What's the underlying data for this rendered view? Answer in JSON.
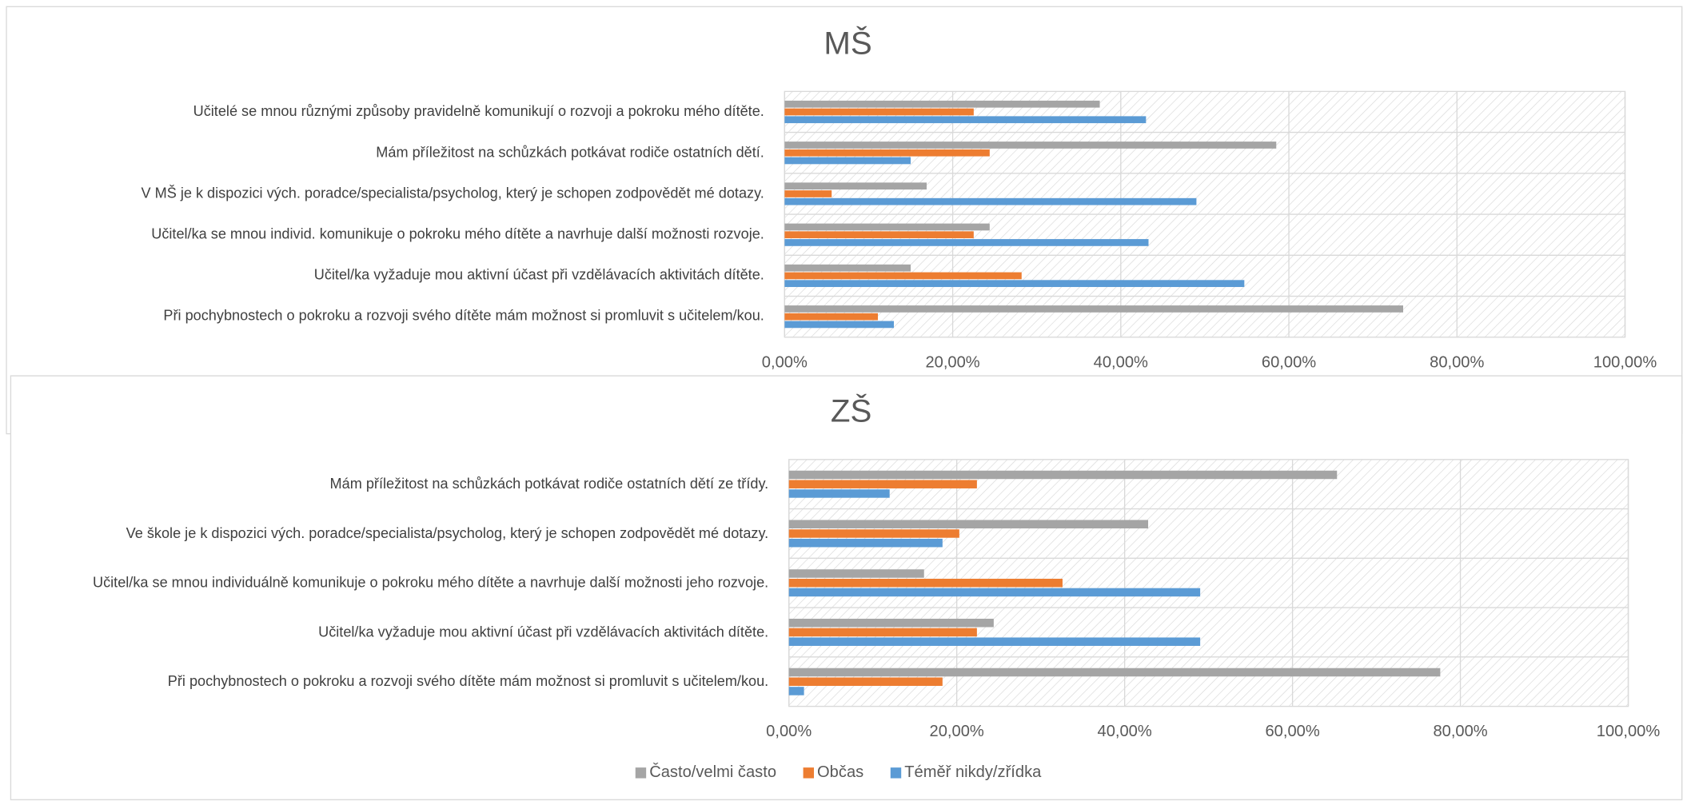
{
  "chart_data": [
    {
      "type": "bar",
      "orientation": "horizontal",
      "title": "MŠ",
      "categories": [
        "Učitelé se mnou různými způsoby pravidelně komunikují o rozvoji a pokroku mého dítěte.",
        "Mám příležitost na schůzkách potkávat rodiče ostatních dětí.",
        "V MŠ je k dispozici vých. poradce/specialista/psycholog, který je schopen zodpovědět mé dotazy.",
        "Učitel/ka se mnou individ. komunikuje o pokroku mého dítěte a navrhuje další možnosti rozvoje.",
        "Učitel/ka vyžaduje mou aktivní účast při vzdělávacích aktivitách dítěte.",
        "Při pochybnostech o pokroku a rozvoji svého dítěte mám možnost si promluvit s učitelem/kou."
      ],
      "series": [
        {
          "color": "#a5a5a5",
          "values": [
            37.5,
            58.5,
            16.9,
            24.4,
            15,
            73.6
          ]
        },
        {
          "color": "#ed7d31",
          "values": [
            22.5,
            24.4,
            5.6,
            22.5,
            28.2,
            11.1
          ]
        },
        {
          "color": "#5b9bd5",
          "values": [
            43,
            15,
            49,
            43.3,
            54.7,
            13
          ]
        }
      ],
      "xlim": [
        0,
        100
      ],
      "xticks": [
        {
          "value": 0,
          "label": "0,00%"
        },
        {
          "value": 20,
          "label": "20,00%"
        },
        {
          "value": 40,
          "label": "40,00%"
        },
        {
          "value": 60,
          "label": "60,00%"
        },
        {
          "value": 80,
          "label": "80,00%"
        },
        {
          "value": 100,
          "label": "100,00%"
        }
      ],
      "grid": true
    },
    {
      "type": "bar",
      "orientation": "horizontal",
      "title": "ZŠ",
      "categories": [
        "Mám příležitost na schůzkách potkávat rodiče ostatních dětí ze třídy.",
        "Ve škole je k dispozici vých. poradce/specialista/psycholog, který je schopen zodpovědět mé dotazy.",
        "Učitel/ka se mnou individuálně komunikuje o pokroku mého dítěte a navrhuje další možnosti jeho rozvoje.",
        "Učitel/ka vyžaduje mou aktivní účast při vzdělávacích aktivitách dítěte.",
        "Při pochybnostech o pokroku a rozvoji svého dítěte mám možnost si promluvit s učitelem/kou."
      ],
      "series": [
        {
          "name": "Často/velmi často",
          "color": "#a5a5a5",
          "values": [
            65.3,
            42.8,
            16.1,
            24.4,
            77.6
          ]
        },
        {
          "name": "Občas",
          "color": "#ed7d31",
          "values": [
            22.4,
            20.3,
            32.6,
            22.4,
            18.3
          ]
        },
        {
          "name": "Téměř nikdy/zřídka",
          "color": "#5b9bd5",
          "values": [
            12,
            18.3,
            49,
            49,
            1.8
          ]
        }
      ],
      "xlim": [
        0,
        100
      ],
      "xticks": [
        {
          "value": 0,
          "label": "0,00%"
        },
        {
          "value": 20,
          "label": "20,00%"
        },
        {
          "value": 40,
          "label": "40,00%"
        },
        {
          "value": 60,
          "label": "60,00%"
        },
        {
          "value": 80,
          "label": "80,00%"
        },
        {
          "value": 100,
          "label": "100,00%"
        }
      ],
      "grid": true,
      "legend": "bottom"
    }
  ]
}
